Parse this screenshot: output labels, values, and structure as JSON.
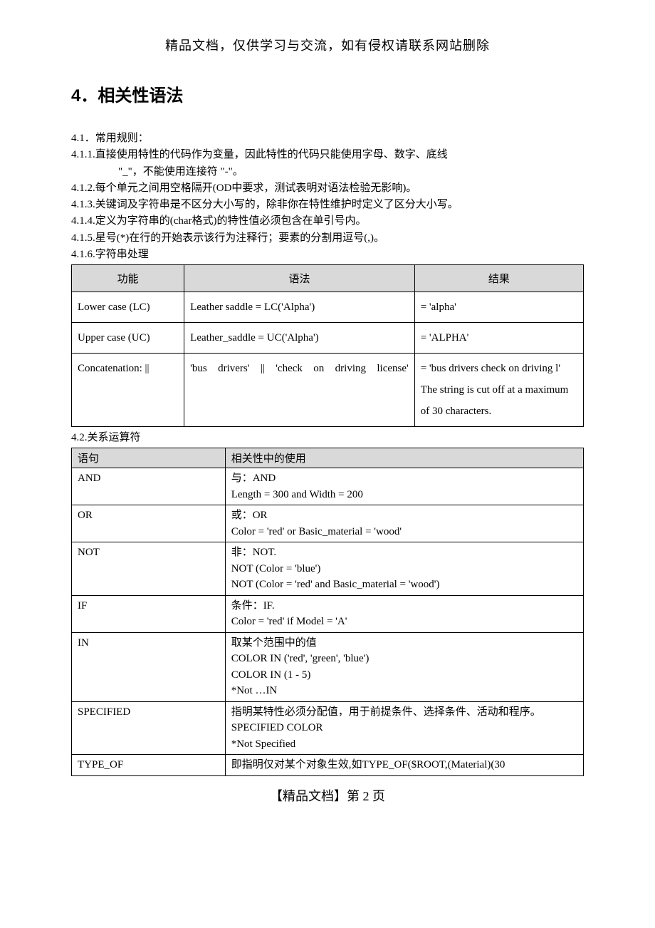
{
  "top_note": "精品文档，仅供学习与交流，如有侵权请联系网站删除",
  "heading": "4．相关性语法",
  "section41": "4.1．常用规则：",
  "rule411a": "4.1.1.直接使用特性的代码作为变量，因此特性的代码只能使用字母、数字、底线",
  "rule411b": "\"_\"，不能使用连接符 \"-\"。",
  "rule412": "4.1.2.每个单元之间用空格隔开(OD中要求，测试表明对语法检验无影响)。",
  "rule413": "4.1.3.关键词及字符串是不区分大小写的，除非你在特性维护时定义了区分大小写。",
  "rule414": "4.1.4.定义为字符串的(char格式)的特性值必须包含在单引号内。",
  "rule415": "4.1.5.星号(*)在行的开始表示该行为注释行；要素的分割用逗号(,)。",
  "rule416": "4.1.6.字符串处理",
  "table1": {
    "headers": [
      "功能",
      "语法",
      "结果"
    ],
    "rows": [
      {
        "c1": "Lower case (LC)",
        "c2": "Leather saddle = LC('Alpha')",
        "c3": "= 'alpha'"
      },
      {
        "c1": "Upper case (UC)",
        "c2": "Leather_saddle = UC('Alpha')",
        "c3": "= 'ALPHA'"
      },
      {
        "c1": "Concatenation: ||",
        "c2": "'bus  drivers'  ||  'check  on driving license'",
        "c3": "= 'bus drivers check on driving l'\nThe string is cut off at a   maximum   of   30 characters."
      }
    ]
  },
  "section42": "4.2.关系运算符",
  "table2": {
    "headers": [
      "语句",
      "相关性中的使用"
    ],
    "rows": [
      {
        "c1": "AND",
        "c2": "与：AND\nLength = 300 and Width = 200"
      },
      {
        "c1": "OR",
        "c2": "或：OR\nColor = 'red'  or Basic_material = 'wood'"
      },
      {
        "c1": "NOT",
        "c2": "非：NOT.\nNOT (Color = 'blue')\nNOT (Color = 'red'  and Basic_material = 'wood')"
      },
      {
        "c1": "IF",
        "c2": "条件：IF.\nColor = 'red' if Model = 'A'"
      },
      {
        "c1": "IN",
        "c2": "取某个范围中的值\nCOLOR IN ('red', 'green', 'blue')\nCOLOR IN (1 - 5)\n*Not …IN"
      },
      {
        "c1": "SPECIFIED",
        "c2": "指明某特性必须分配值，用于前提条件、选择条件、活动和程序。\nSPECIFIED COLOR\n*Not Specified"
      },
      {
        "c1": "TYPE_OF",
        "c2": "即指明仅对某个对象生效,如TYPE_OF($ROOT,(Material)(30"
      }
    ]
  },
  "footer": "【精品文档】第 2 页"
}
